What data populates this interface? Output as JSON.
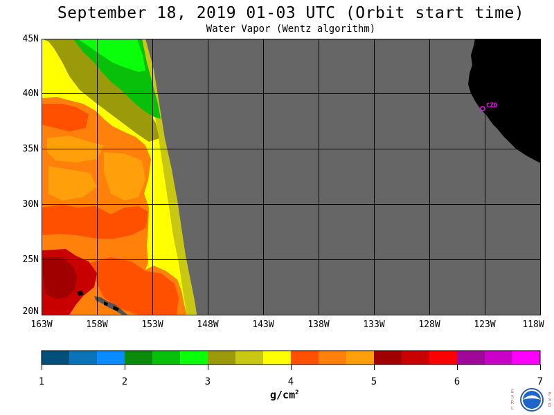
{
  "title": "September 18, 2019  01-03 UTC  (Orbit start time)",
  "subtitle": "Water Vapor (Wentz algorithm)",
  "map": {
    "lat_labels": [
      "45N",
      "40N",
      "35N",
      "30N",
      "25N",
      "20N"
    ],
    "lon_labels": [
      "163W",
      "158W",
      "153W",
      "148W",
      "143W",
      "138W",
      "133W",
      "128W",
      "123W",
      "118W"
    ],
    "lat_range": [
      20,
      45
    ],
    "lon_range": [
      -163,
      -118
    ],
    "no_data_color": "#666666",
    "land_color": "#000000",
    "grid_color": "#000000",
    "station_label": "CZD",
    "station_color": "#ff00ff"
  },
  "colorbar": {
    "tick_labels": [
      "1",
      "2",
      "3",
      "4",
      "5",
      "6",
      "7"
    ],
    "units": "g/cm",
    "units_exp": "2",
    "colors": [
      "#00507a",
      "#0a74b8",
      "#0a8cff",
      "#0a8c0a",
      "#08c00a",
      "#0aff0a",
      "#9a9a0a",
      "#c8c814",
      "#ffff00",
      "#ff5000",
      "#ff800a",
      "#ffa00a",
      "#a00000",
      "#c80000",
      "#ff0000",
      "#a0089a",
      "#c800c8",
      "#ff00ff"
    ]
  },
  "logo": {
    "left_letters": [
      "E",
      "S",
      "R",
      "L"
    ],
    "right_letters": [
      "P",
      "S",
      "D"
    ]
  }
}
